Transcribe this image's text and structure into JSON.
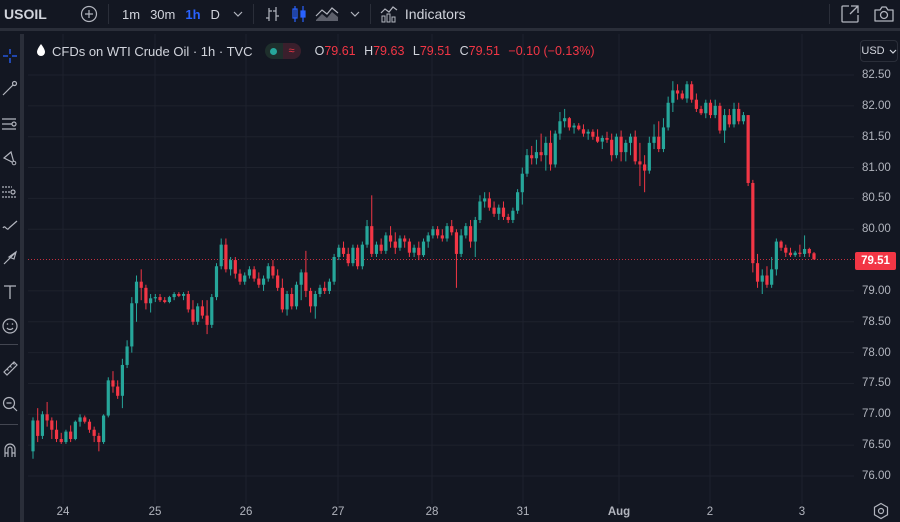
{
  "topbar": {
    "symbol": "USOIL",
    "add_symbol_icon": "plus-circle-icon",
    "timeframes": [
      {
        "label": "1m",
        "active": false
      },
      {
        "label": "30m",
        "active": false
      },
      {
        "label": "1h",
        "active": true
      },
      {
        "label": "D",
        "active": false
      }
    ],
    "timeframe_dropdown_icon": "chevron-down-icon",
    "chart_type_icons": [
      "bars-icon",
      "candles-icon",
      "area-icon"
    ],
    "chart_type_dropdown_icon": "chevron-down-icon",
    "indicators_label": "Indicators",
    "right_icons": [
      "fullscreen-icon",
      "camera-icon"
    ]
  },
  "left_toolbar": {
    "tools": [
      "crosshair-icon",
      "trend-line-icon",
      "horizontal-lines-icon",
      "pattern-icon",
      "fib-icon",
      "brush-icon",
      "arrow-icon",
      "text-icon",
      "emoji-icon",
      "ruler-icon",
      "zoom-in-icon",
      "magnet-icon"
    ]
  },
  "legend": {
    "title": "CFDs on WTI Crude Oil · 1h · TVC",
    "o_label": "O",
    "o_value": "79.61",
    "h_label": "H",
    "h_value": "79.63",
    "l_label": "L",
    "l_value": "79.51",
    "c_label": "C",
    "c_value": "79.51",
    "change": "−0.10 (−0.13%)"
  },
  "price_scale": {
    "currency": "USD",
    "last_price": "79.51",
    "labels": [
      "82.50",
      "82.00",
      "81.50",
      "81.00",
      "80.50",
      "80.00",
      "79.00",
      "78.50",
      "78.00",
      "77.50",
      "77.00",
      "76.50",
      "76.00"
    ]
  },
  "time_scale": {
    "labels": [
      "24",
      "25",
      "26",
      "27",
      "28",
      "31",
      "Aug",
      "2",
      "3"
    ]
  },
  "colors": {
    "background": "#131722",
    "up": "#26a69a",
    "down": "#f23645",
    "grid": "#1e222d",
    "text": "#b2b5be",
    "accent": "#2962ff"
  },
  "chart_data": {
    "type": "candlestick",
    "title": "CFDs on WTI Crude Oil · 1h · TVC",
    "symbol": "USOIL",
    "interval": "1h",
    "xlabel": "",
    "ylabel": "USD",
    "ylim": [
      75.8,
      82.7
    ],
    "x_ticks": [
      "24",
      "25",
      "26",
      "27",
      "28",
      "31",
      "Aug",
      "2",
      "3"
    ],
    "y_ticks": [
      76.0,
      76.5,
      77.0,
      77.5,
      78.0,
      78.5,
      79.0,
      79.5,
      80.0,
      80.5,
      81.0,
      81.5,
      82.0,
      82.5
    ],
    "last_price": 79.51,
    "candles": [
      [
        76.4,
        76.95,
        76.28,
        76.9
      ],
      [
        76.9,
        77.1,
        76.55,
        76.65
      ],
      [
        76.65,
        77.05,
        76.6,
        77.0
      ],
      [
        77.0,
        77.2,
        76.8,
        76.9
      ],
      [
        76.9,
        76.95,
        76.6,
        76.75
      ],
      [
        76.75,
        76.9,
        76.55,
        76.6
      ],
      [
        76.6,
        76.7,
        76.52,
        76.55
      ],
      [
        76.55,
        76.75,
        76.52,
        76.72
      ],
      [
        76.72,
        76.82,
        76.55,
        76.6
      ],
      [
        76.6,
        76.9,
        76.58,
        76.88
      ],
      [
        76.88,
        77.0,
        76.8,
        76.95
      ],
      [
        76.95,
        76.98,
        76.85,
        76.88
      ],
      [
        76.88,
        76.92,
        76.7,
        76.75
      ],
      [
        76.75,
        76.8,
        76.55,
        76.65
      ],
      [
        76.65,
        76.7,
        76.4,
        76.55
      ],
      [
        76.55,
        77.0,
        76.52,
        76.98
      ],
      [
        76.98,
        77.6,
        76.95,
        77.55
      ],
      [
        77.55,
        77.7,
        77.35,
        77.45
      ],
      [
        77.45,
        77.55,
        77.25,
        77.3
      ],
      [
        77.3,
        77.9,
        77.1,
        77.8
      ],
      [
        77.8,
        78.2,
        77.75,
        78.1
      ],
      [
        78.1,
        78.9,
        78.0,
        78.8
      ],
      [
        78.8,
        79.25,
        78.5,
        79.15
      ],
      [
        79.15,
        79.35,
        78.85,
        79.05
      ],
      [
        79.05,
        79.1,
        78.7,
        78.8
      ],
      [
        78.8,
        78.95,
        78.65,
        78.88
      ],
      [
        78.88,
        78.95,
        78.82,
        78.9
      ],
      [
        78.9,
        78.95,
        78.82,
        78.85
      ],
      [
        78.85,
        78.9,
        78.8,
        78.82
      ],
      [
        78.82,
        78.92,
        78.8,
        78.9
      ],
      [
        78.9,
        78.98,
        78.85,
        78.95
      ],
      [
        78.95,
        78.98,
        78.9,
        78.92
      ],
      [
        78.92,
        78.98,
        78.85,
        78.95
      ],
      [
        78.95,
        79.0,
        78.65,
        78.7
      ],
      [
        78.7,
        78.85,
        78.45,
        78.5
      ],
      [
        78.5,
        78.8,
        78.45,
        78.75
      ],
      [
        78.75,
        78.85,
        78.55,
        78.6
      ],
      [
        78.6,
        78.85,
        78.3,
        78.45
      ],
      [
        78.45,
        78.95,
        78.4,
        78.9
      ],
      [
        78.9,
        79.45,
        78.85,
        79.4
      ],
      [
        79.4,
        79.85,
        79.35,
        79.75
      ],
      [
        79.75,
        79.85,
        79.3,
        79.35
      ],
      [
        79.35,
        79.55,
        79.25,
        79.5
      ],
      [
        79.5,
        79.55,
        79.2,
        79.28
      ],
      [
        79.28,
        79.35,
        79.1,
        79.15
      ],
      [
        79.15,
        79.3,
        79.1,
        79.25
      ],
      [
        79.25,
        79.4,
        79.2,
        79.35
      ],
      [
        79.35,
        79.4,
        79.15,
        79.2
      ],
      [
        79.2,
        79.3,
        79.05,
        79.1
      ],
      [
        79.1,
        79.25,
        79.0,
        79.2
      ],
      [
        79.2,
        79.45,
        79.15,
        79.4
      ],
      [
        79.4,
        79.5,
        79.2,
        79.25
      ],
      [
        79.25,
        79.35,
        79.0,
        79.05
      ],
      [
        79.05,
        79.2,
        78.65,
        78.7
      ],
      [
        78.7,
        79.0,
        78.6,
        78.95
      ],
      [
        78.95,
        79.05,
        78.7,
        78.75
      ],
      [
        78.75,
        79.15,
        78.7,
        79.1
      ],
      [
        79.1,
        79.35,
        78.85,
        79.3
      ],
      [
        79.3,
        79.65,
        78.9,
        79.0
      ],
      [
        79.0,
        79.05,
        78.65,
        78.75
      ],
      [
        78.75,
        79.0,
        78.55,
        78.95
      ],
      [
        78.95,
        79.1,
        78.9,
        79.05
      ],
      [
        79.05,
        79.15,
        78.95,
        79.0
      ],
      [
        79.0,
        79.2,
        78.95,
        79.15
      ],
      [
        79.15,
        79.6,
        79.1,
        79.55
      ],
      [
        79.55,
        79.75,
        79.5,
        79.7
      ],
      [
        79.7,
        79.8,
        79.55,
        79.6
      ],
      [
        79.6,
        79.7,
        79.4,
        79.45
      ],
      [
        79.45,
        79.75,
        79.4,
        79.7
      ],
      [
        79.7,
        79.75,
        79.35,
        79.4
      ],
      [
        79.4,
        79.8,
        79.35,
        79.75
      ],
      [
        79.75,
        80.15,
        79.7,
        80.05
      ],
      [
        80.05,
        80.55,
        79.55,
        79.6
      ],
      [
        79.6,
        79.8,
        79.55,
        79.75
      ],
      [
        79.75,
        79.85,
        79.6,
        79.65
      ],
      [
        79.65,
        79.95,
        79.6,
        79.9
      ],
      [
        79.9,
        80.05,
        79.7,
        79.8
      ],
      [
        79.8,
        79.95,
        79.6,
        79.7
      ],
      [
        79.7,
        79.9,
        79.65,
        79.85
      ],
      [
        79.85,
        79.9,
        79.7,
        79.8
      ],
      [
        79.8,
        79.85,
        79.55,
        79.62
      ],
      [
        79.62,
        79.75,
        79.55,
        79.7
      ],
      [
        79.7,
        79.8,
        79.5,
        79.58
      ],
      [
        79.58,
        79.85,
        79.55,
        79.8
      ],
      [
        79.8,
        79.95,
        79.7,
        79.9
      ],
      [
        79.9,
        80.05,
        79.85,
        80.0
      ],
      [
        80.0,
        80.05,
        79.85,
        79.9
      ],
      [
        79.9,
        80.0,
        79.8,
        79.85
      ],
      [
        79.85,
        80.1,
        79.8,
        80.05
      ],
      [
        80.05,
        80.15,
        79.9,
        79.95
      ],
      [
        79.95,
        80.0,
        79.05,
        79.6
      ],
      [
        79.6,
        80.0,
        79.55,
        79.9
      ],
      [
        79.9,
        80.1,
        79.85,
        80.05
      ],
      [
        80.05,
        80.15,
        79.7,
        79.8
      ],
      [
        79.8,
        80.2,
        79.55,
        80.15
      ],
      [
        80.15,
        80.55,
        80.1,
        80.45
      ],
      [
        80.45,
        80.6,
        80.35,
        80.5
      ],
      [
        80.5,
        80.6,
        80.3,
        80.35
      ],
      [
        80.35,
        80.45,
        80.2,
        80.25
      ],
      [
        80.25,
        80.4,
        80.15,
        80.35
      ],
      [
        80.35,
        80.45,
        80.15,
        80.2
      ],
      [
        80.2,
        80.25,
        80.1,
        80.15
      ],
      [
        80.15,
        80.35,
        80.1,
        80.3
      ],
      [
        80.3,
        80.65,
        80.25,
        80.6
      ],
      [
        80.6,
        81.0,
        80.4,
        80.9
      ],
      [
        80.9,
        81.3,
        80.85,
        81.2
      ],
      [
        81.2,
        81.35,
        81.05,
        81.15
      ],
      [
        81.15,
        81.45,
        81.05,
        81.25
      ],
      [
        81.25,
        81.55,
        81.1,
        81.2
      ],
      [
        81.2,
        81.5,
        80.95,
        81.4
      ],
      [
        81.4,
        81.6,
        80.95,
        81.05
      ],
      [
        81.05,
        81.6,
        81.0,
        81.55
      ],
      [
        81.55,
        81.9,
        81.45,
        81.75
      ],
      [
        81.75,
        81.95,
        81.65,
        81.8
      ],
      [
        81.8,
        81.82,
        81.6,
        81.65
      ],
      [
        81.65,
        81.72,
        81.55,
        81.68
      ],
      [
        81.68,
        81.72,
        81.6,
        81.62
      ],
      [
        81.62,
        81.7,
        81.5,
        81.55
      ],
      [
        81.55,
        81.62,
        81.45,
        81.58
      ],
      [
        81.58,
        81.62,
        81.45,
        81.5
      ],
      [
        81.5,
        81.62,
        81.4,
        81.42
      ],
      [
        81.42,
        81.52,
        81.3,
        81.48
      ],
      [
        81.48,
        81.58,
        81.4,
        81.45
      ],
      [
        81.45,
        81.55,
        81.1,
        81.2
      ],
      [
        81.2,
        81.55,
        81.15,
        81.5
      ],
      [
        81.5,
        81.6,
        81.1,
        81.25
      ],
      [
        81.25,
        81.45,
        81.1,
        81.4
      ],
      [
        81.4,
        81.55,
        81.2,
        81.5
      ],
      [
        81.5,
        81.6,
        81.05,
        81.1
      ],
      [
        81.1,
        81.4,
        80.7,
        81.05
      ],
      [
        81.05,
        81.2,
        80.6,
        80.95
      ],
      [
        80.95,
        81.5,
        80.9,
        81.4
      ],
      [
        81.4,
        81.7,
        81.3,
        81.5
      ],
      [
        81.5,
        81.75,
        81.25,
        81.3
      ],
      [
        81.3,
        81.8,
        81.25,
        81.65
      ],
      [
        81.65,
        82.15,
        81.6,
        82.05
      ],
      [
        82.05,
        82.4,
        81.9,
        82.25
      ],
      [
        82.25,
        82.35,
        82.1,
        82.2
      ],
      [
        82.2,
        82.25,
        82.1,
        82.12
      ],
      [
        82.12,
        82.4,
        82.05,
        82.35
      ],
      [
        82.35,
        82.4,
        82.05,
        82.1
      ],
      [
        82.1,
        82.2,
        81.9,
        81.95
      ],
      [
        81.95,
        82.0,
        81.85,
        81.88
      ],
      [
        81.88,
        82.1,
        81.8,
        82.05
      ],
      [
        82.05,
        82.1,
        81.8,
        81.85
      ],
      [
        81.85,
        82.1,
        81.8,
        82.0
      ],
      [
        82.0,
        82.05,
        81.55,
        81.6
      ],
      [
        81.6,
        81.95,
        81.4,
        81.85
      ],
      [
        81.85,
        81.95,
        81.65,
        81.7
      ],
      [
        81.7,
        82.05,
        81.65,
        81.95
      ],
      [
        81.95,
        82.05,
        81.7,
        81.75
      ],
      [
        81.75,
        81.9,
        81.7,
        81.85
      ],
      [
        81.85,
        81.85,
        80.7,
        80.75
      ],
      [
        80.75,
        80.8,
        79.3,
        79.45
      ],
      [
        79.45,
        79.6,
        79.05,
        79.15
      ],
      [
        79.15,
        79.35,
        78.95,
        79.25
      ],
      [
        79.25,
        79.4,
        79.05,
        79.1
      ],
      [
        79.1,
        79.55,
        79.05,
        79.35
      ],
      [
        79.35,
        79.85,
        79.25,
        79.8
      ],
      [
        79.8,
        79.82,
        79.65,
        79.7
      ],
      [
        79.7,
        79.75,
        79.55,
        79.62
      ],
      [
        79.62,
        79.7,
        79.55,
        79.58
      ],
      [
        79.58,
        79.65,
        79.55,
        79.62
      ],
      [
        79.62,
        79.75,
        79.55,
        79.6
      ],
      [
        79.6,
        79.9,
        79.55,
        79.68
      ],
      [
        79.68,
        79.7,
        79.55,
        79.61
      ],
      [
        79.61,
        79.63,
        79.51,
        79.51
      ]
    ]
  }
}
